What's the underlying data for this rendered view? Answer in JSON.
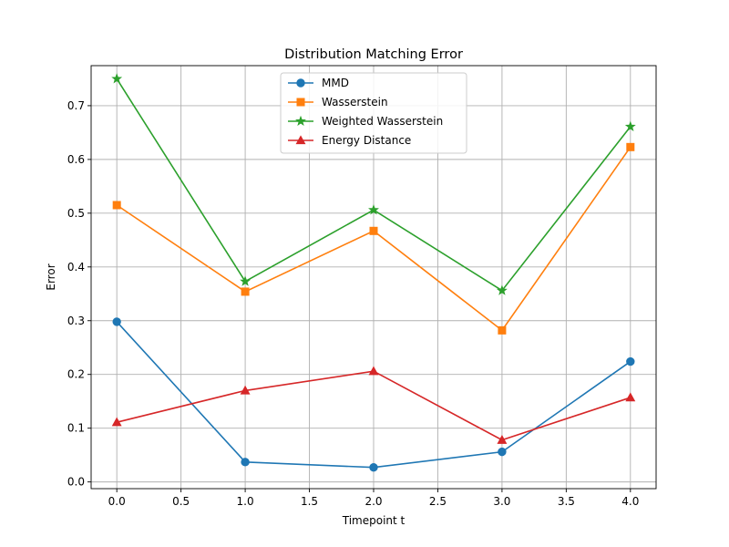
{
  "chart_data": {
    "type": "line",
    "title": "Distribution Matching Error",
    "xlabel": "Timepoint t",
    "ylabel": "Error",
    "x": [
      0,
      1,
      2,
      3,
      4
    ],
    "xlim": [
      -0.2,
      4.2
    ],
    "ylim": [
      -0.0125,
      0.7745
    ],
    "xticks": [
      0.0,
      0.5,
      1.0,
      1.5,
      2.0,
      2.5,
      3.0,
      3.5,
      4.0
    ],
    "xtick_labels": [
      "0.0",
      "0.5",
      "1.0",
      "1.5",
      "2.0",
      "2.5",
      "3.0",
      "3.5",
      "4.0"
    ],
    "yticks": [
      0.0,
      0.1,
      0.2,
      0.3,
      0.4,
      0.5,
      0.6,
      0.7
    ],
    "ytick_labels": [
      "0.0",
      "0.1",
      "0.2",
      "0.3",
      "0.4",
      "0.5",
      "0.6",
      "0.7"
    ],
    "grid": true,
    "legend_position": "upper-center",
    "series": [
      {
        "name": "MMD",
        "color": "#1f77b4",
        "marker": "circle",
        "values": [
          0.298,
          0.037,
          0.027,
          0.056,
          0.224
        ]
      },
      {
        "name": "Wasserstein",
        "color": "#ff7f0e",
        "marker": "square",
        "values": [
          0.515,
          0.354,
          0.467,
          0.282,
          0.623
        ]
      },
      {
        "name": "Weighted Wasserstein",
        "color": "#2ca02c",
        "marker": "star",
        "values": [
          0.75,
          0.373,
          0.506,
          0.356,
          0.661
        ]
      },
      {
        "name": "Energy Distance",
        "color": "#d62728",
        "marker": "triangle",
        "values": [
          0.111,
          0.17,
          0.206,
          0.078,
          0.157
        ]
      }
    ]
  }
}
